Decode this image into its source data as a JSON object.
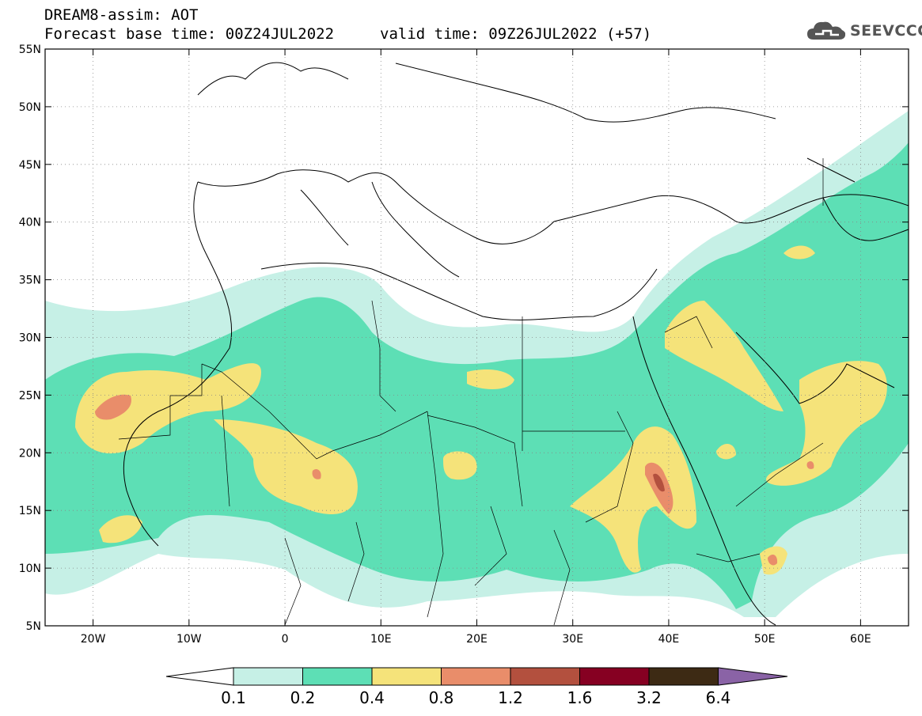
{
  "header": {
    "line1": "DREAM8-assim: AOT",
    "line2": "Forecast base time: 00Z24JUL2022",
    "line3": "valid time: 09Z26JUL2022 (+57)"
  },
  "logo": {
    "text": "SEEVCCC",
    "icon": "cloud-logo-icon"
  },
  "map": {
    "lon_range": [
      -25,
      65
    ],
    "lat_range": [
      5,
      55
    ],
    "lon_ticks": [
      {
        "value": -20,
        "label": "20W"
      },
      {
        "value": -10,
        "label": "10W"
      },
      {
        "value": 0,
        "label": "0"
      },
      {
        "value": 10,
        "label": "10E"
      },
      {
        "value": 20,
        "label": "20E"
      },
      {
        "value": 30,
        "label": "30E"
      },
      {
        "value": 40,
        "label": "40E"
      },
      {
        "value": 50,
        "label": "50E"
      },
      {
        "value": 60,
        "label": "60E"
      }
    ],
    "lat_ticks": [
      {
        "value": 5,
        "label": "5N"
      },
      {
        "value": 10,
        "label": "10N"
      },
      {
        "value": 15,
        "label": "15N"
      },
      {
        "value": 20,
        "label": "20N"
      },
      {
        "value": 25,
        "label": "25N"
      },
      {
        "value": 30,
        "label": "30N"
      },
      {
        "value": 35,
        "label": "35N"
      },
      {
        "value": 40,
        "label": "40N"
      },
      {
        "value": 45,
        "label": "45N"
      },
      {
        "value": 50,
        "label": "50N"
      },
      {
        "value": 55,
        "label": "55N"
      }
    ],
    "grid": true
  },
  "colorbar": {
    "colors": [
      "#c6f0e6",
      "#5ddfb5",
      "#f5e37a",
      "#e98d6a",
      "#b3503e",
      "#860022",
      "#3d2a14",
      "#8a63a6"
    ],
    "labels": [
      "0.1",
      "0.2",
      "0.4",
      "0.8",
      "1.2",
      "1.6",
      "3.2",
      "6.4"
    ]
  }
}
